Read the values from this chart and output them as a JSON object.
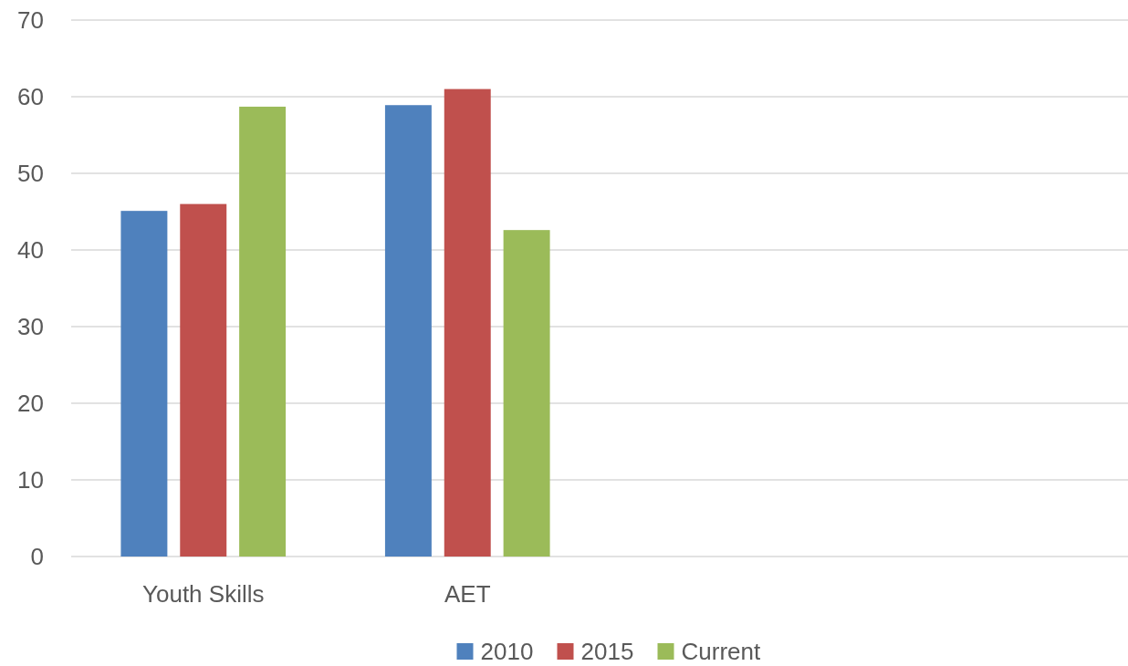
{
  "chart_data": {
    "type": "bar",
    "categories": [
      "Youth Skills",
      "AET",
      null,
      null
    ],
    "series": [
      {
        "name": "2010",
        "color": "#4f81bd",
        "values": [
          45.1,
          58.9,
          null,
          null
        ]
      },
      {
        "name": "2015",
        "color": "#c0504d",
        "values": [
          46.0,
          61.0,
          null,
          null
        ]
      },
      {
        "name": "Current",
        "color": "#9bbb59",
        "values": [
          58.7,
          42.6,
          null,
          null
        ]
      }
    ],
    "ylim": [
      0,
      70
    ],
    "yticks": [
      0,
      10,
      20,
      30,
      40,
      50,
      60,
      70
    ],
    "grid": "y",
    "legend": "bottom"
  }
}
